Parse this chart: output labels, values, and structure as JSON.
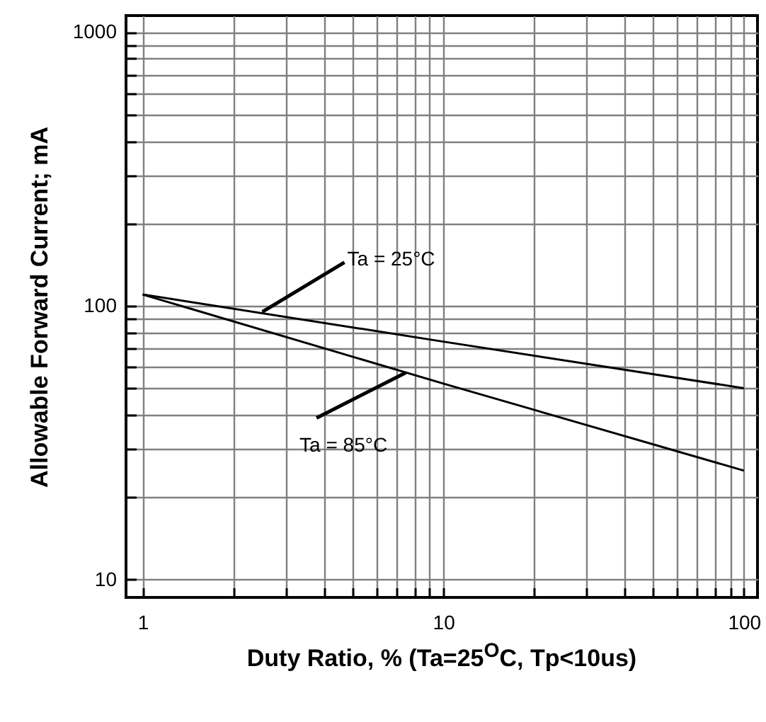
{
  "chart_data": {
    "type": "line",
    "xlabel": "Duty Ratio, % (Ta=25$^{O}$C, Tp<10us)",
    "ylabel": "Allowable Forward Current; mA",
    "log": "xy",
    "grid": true,
    "marker": "none",
    "line_style": "solid",
    "xlim": [
      0.88,
      111
    ],
    "ylim": [
      8.6,
      1150
    ],
    "xticks": [
      1,
      {
        "value": 2,
        "label": null
      },
      {
        "value": 3,
        "label": null
      },
      {
        "value": 4,
        "label": null
      },
      {
        "value": 5,
        "label": null
      },
      {
        "value": 6,
        "label": null
      },
      {
        "value": 7,
        "label": null
      },
      {
        "value": 8,
        "label": null
      },
      {
        "value": 9,
        "label": null
      },
      10,
      {
        "value": 20,
        "label": null
      },
      {
        "value": 30,
        "label": null
      },
      {
        "value": 40,
        "label": null
      },
      {
        "value": 50,
        "label": null
      },
      {
        "value": 60,
        "label": null
      },
      {
        "value": 70,
        "label": null
      },
      {
        "value": 80,
        "label": null
      },
      {
        "value": 90,
        "label": null
      },
      100
    ],
    "yticks": [
      10,
      {
        "value": 20,
        "label": null
      },
      {
        "value": 30,
        "label": null
      },
      {
        "value": 40,
        "label": null
      },
      {
        "value": 50,
        "label": null
      },
      {
        "value": 60,
        "label": null
      },
      {
        "value": 70,
        "label": null
      },
      {
        "value": 80,
        "label": null
      },
      {
        "value": 90,
        "label": null
      },
      100,
      {
        "value": 200,
        "label": null
      },
      {
        "value": 300,
        "label": null
      },
      {
        "value": 400,
        "label": null
      },
      {
        "value": 500,
        "label": null
      },
      {
        "value": 600,
        "label": null
      },
      {
        "value": 700,
        "label": null
      },
      {
        "value": 800,
        "label": null
      },
      {
        "value": 900,
        "label": null
      },
      1000
    ],
    "series": [
      {
        "color": "#000000",
        "x": [
          1,
          10,
          100
        ],
        "values": [
          110,
          74,
          50
        ]
      },
      {
        "color": "#000000",
        "x": [
          1,
          10,
          100
        ],
        "values": [
          110,
          52,
          25
        ]
      }
    ],
    "annotations": [
      {
        "text": "Ta = 25°C",
        "x": 2.5,
        "y": 95
      },
      {
        "text": "Ta = 85°C",
        "x": 7.5,
        "y": 57
      }
    ]
  }
}
